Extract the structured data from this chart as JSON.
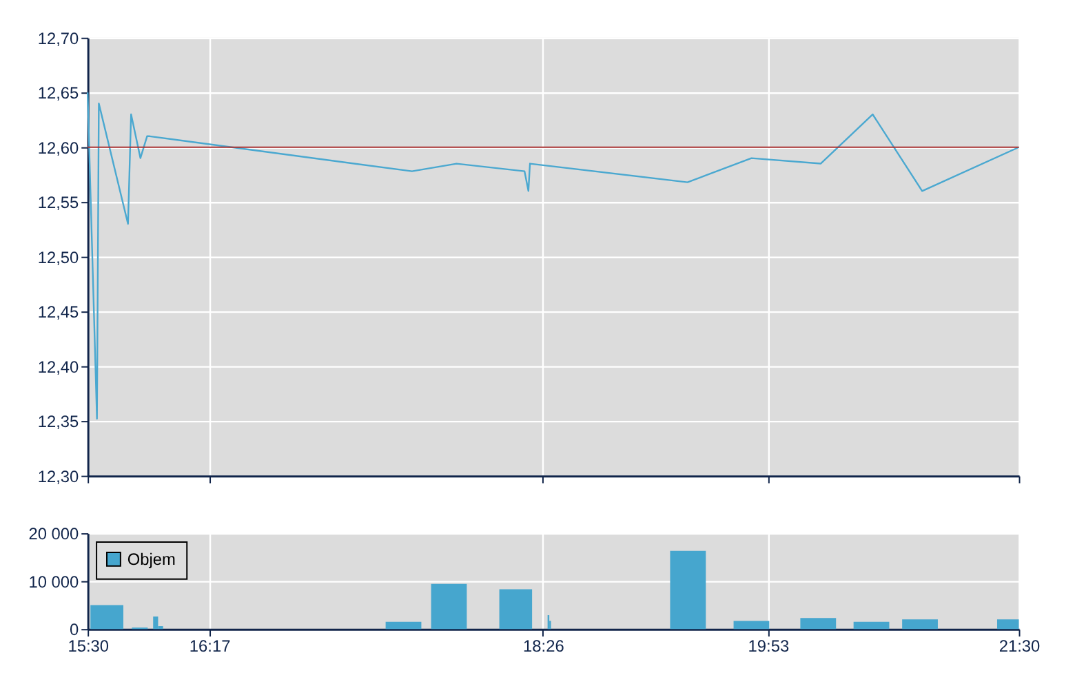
{
  "chart_data": [
    {
      "type": "line",
      "x": [
        15.5,
        15.56,
        15.572,
        15.76,
        15.78,
        15.84,
        15.883,
        15.9,
        17.59,
        17.877,
        18.315,
        18.34,
        18.35,
        19.365,
        19.777,
        20.223,
        20.558,
        20.877,
        21.5
      ],
      "series": [
        {
          "color": "#4aa8d0",
          "values": [
            12.65,
            12.352,
            12.64,
            12.53,
            12.63,
            12.59,
            12.61,
            12.61,
            12.578,
            12.585,
            12.578,
            12.56,
            12.585,
            12.568,
            12.59,
            12.585,
            12.63,
            12.56,
            12.6
          ]
        }
      ],
      "xlim": [
        15.5,
        21.5
      ],
      "xticks": [
        15.5,
        16.2833,
        18.4333,
        19.8833,
        21.5
      ],
      "ylim": [
        12.3,
        12.7
      ],
      "yticks": [
        {
          "value": 12.3,
          "label": "12,30"
        },
        {
          "value": 12.35,
          "label": "12,35"
        },
        {
          "value": 12.4,
          "label": "12,40"
        },
        {
          "value": 12.45,
          "label": "12,45"
        },
        {
          "value": 12.5,
          "label": "12,50"
        },
        {
          "value": 12.55,
          "label": "12,55"
        },
        {
          "value": 12.6,
          "label": "12,60"
        },
        {
          "value": 12.65,
          "label": "12,65"
        },
        {
          "value": 12.7,
          "label": "12,70"
        }
      ],
      "ref_lines": [
        {
          "axis": "y",
          "value": 12.6,
          "color": "#a83232"
        }
      ],
      "grid": true,
      "tick_labels": "y",
      "marker": "none"
    },
    {
      "type": "bar",
      "x": [
        15.624,
        15.836,
        15.938,
        15.97,
        17.535,
        17.828,
        18.258,
        18.469,
        18.48,
        19.368,
        19.777,
        20.207,
        20.55,
        20.863,
        21.43
      ],
      "series": [
        {
          "name": "Objem",
          "color": "#46a6ce",
          "values": [
            5000,
            300,
            2600,
            600,
            1500,
            9400,
            8300,
            2900,
            1700,
            16300,
            1700,
            2300,
            1500,
            2000,
            2000
          ]
        }
      ],
      "xlim": [
        15.5,
        21.5
      ],
      "xticks": [
        {
          "value": 15.5,
          "label": "15:30"
        },
        {
          "value": 16.2833,
          "label": "16:17"
        },
        {
          "value": 18.4333,
          "label": "18:26"
        },
        {
          "value": 19.8833,
          "label": "19:53"
        },
        {
          "value": 21.5,
          "label": "21:30"
        }
      ],
      "ylim": [
        0,
        20000
      ],
      "yticks": [
        {
          "value": 0,
          "label": "0"
        },
        {
          "value": 10000,
          "label": "10 000"
        },
        {
          "value": 20000,
          "label": "20 000"
        }
      ],
      "grid": true,
      "legend": "top left"
    }
  ]
}
